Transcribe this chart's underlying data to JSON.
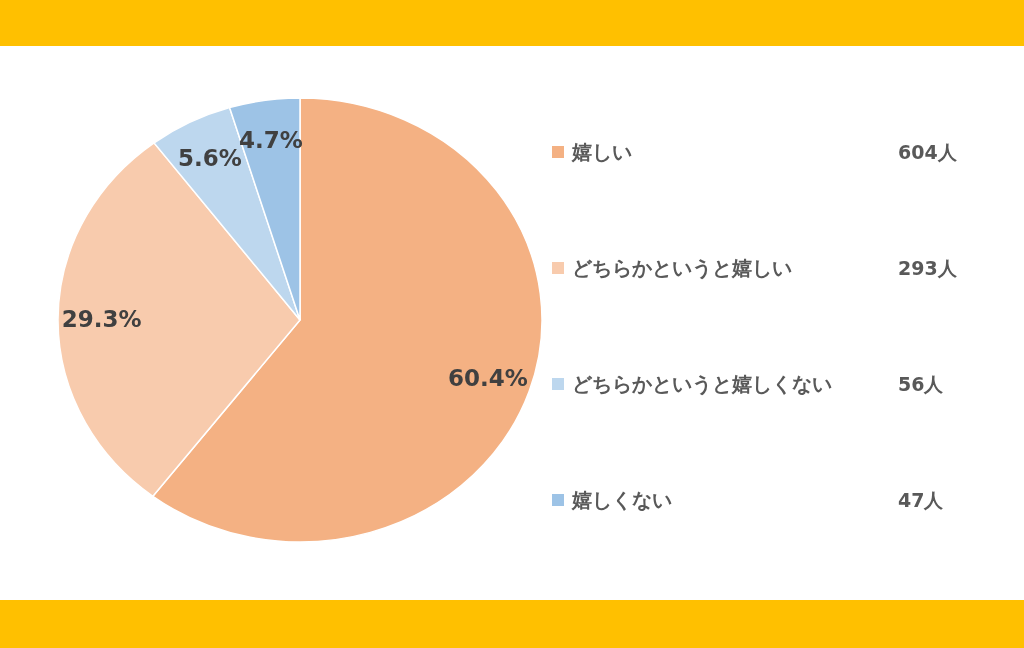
{
  "chart_data": {
    "type": "pie",
    "categories": [
      "嬉しい",
      "どちらかというと嬉しい",
      "どちらかというと嬉しくない",
      "嬉しくない"
    ],
    "values": [
      60.4,
      29.3,
      5.6,
      4.7
    ],
    "value_labels": [
      "60.4%",
      "29.3%",
      "5.6%",
      "4.7%"
    ],
    "colors": [
      "#f4b183",
      "#f8cbad",
      "#bdd7ee",
      "#9dc3e6"
    ],
    "annotations": [
      "604人",
      "293人",
      "56人",
      "47人"
    ],
    "legend": "right"
  }
}
